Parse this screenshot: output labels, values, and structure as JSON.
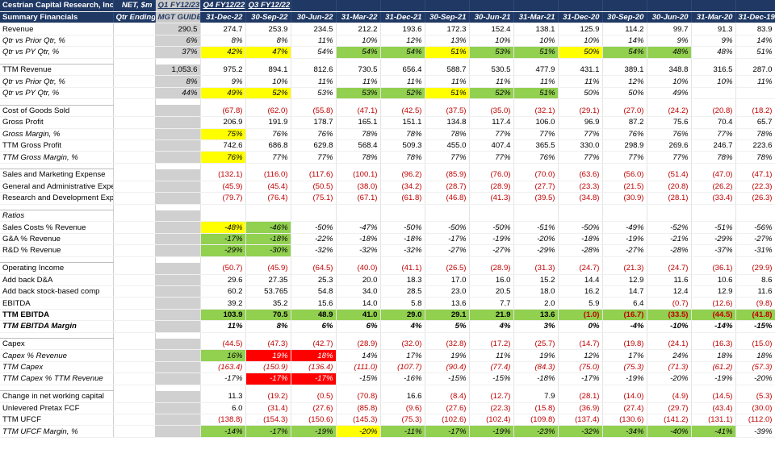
{
  "header": {
    "row1": [
      "Cestrian Capital Research, Inc",
      "NET, $m",
      "Q1 FY12/23",
      "Q4 FY12/22",
      "Q3 FY12/22",
      "",
      "",
      "",
      "",
      "",
      "",
      "",
      "",
      "",
      "",
      ""
    ],
    "row2": [
      "Summary Financials",
      "Qtr Ending",
      "MGT GUIDE",
      "31-Dec-22",
      "30-Sep-22",
      "30-Jun-22",
      "31-Mar-22",
      "31-Dec-21",
      "30-Sep-21",
      "30-Jun-21",
      "31-Mar-21",
      "31-Dec-20",
      "30-Sep-20",
      "30-Jun-20",
      "31-Mar-20",
      "31-Dec-19"
    ]
  },
  "rows": [
    {
      "label": "Revenue",
      "values": [
        "290.5",
        "274.7",
        "253.9",
        "234.5",
        "212.2",
        "193.6",
        "172.3",
        "152.4",
        "138.1",
        "125.9",
        "114.2",
        "99.7",
        "91.3",
        "83.9"
      ]
    },
    {
      "label": "Qtr vs Prior Qtr, %",
      "style": "it",
      "values": [
        "6%",
        "8%",
        "8%",
        "11%",
        "10%",
        "12%",
        "13%",
        "10%",
        "10%",
        "10%",
        "14%",
        "9%",
        "9%",
        "14%"
      ]
    },
    {
      "label": "Qtr vs PY Qtr, %",
      "style": "it",
      "values": [
        "37%",
        "42%",
        "47%",
        "54%",
        "54%",
        "54%",
        "51%",
        "53%",
        "51%",
        "50%",
        "54%",
        "48%",
        "48%",
        "51%"
      ]
    },
    {
      "blank": true
    },
    {
      "label": "TTM Revenue",
      "values": [
        "1,053.6",
        "975.2",
        "894.1",
        "812.6",
        "730.5",
        "656.4",
        "588.7",
        "530.5",
        "477.9",
        "431.1",
        "389.1",
        "348.8",
        "316.5",
        "287.0"
      ]
    },
    {
      "label": "Qtr vs Prior Qtr, %",
      "style": "it",
      "values": [
        "8%",
        "9%",
        "10%",
        "11%",
        "11%",
        "11%",
        "11%",
        "11%",
        "11%",
        "11%",
        "12%",
        "10%",
        "10%",
        "11%"
      ]
    },
    {
      "label": "Qtr vs PY Qtr, %",
      "style": "it",
      "values": [
        "44%",
        "49%",
        "52%",
        "53%",
        "53%",
        "52%",
        "51%",
        "52%",
        "51%",
        "50%",
        "50%",
        "49%",
        "",
        ""
      ]
    },
    {
      "blank": true
    },
    {
      "label": "Cost of Goods Sold",
      "values": [
        "",
        "(67.8)",
        "(62.0)",
        "(55.8)",
        "(47.1)",
        "(42.5)",
        "(37.5)",
        "(35.0)",
        "(32.1)",
        "(29.1)",
        "(27.0)",
        "(24.2)",
        "(20.8)",
        "(18.2)"
      ]
    },
    {
      "label": "Gross Profit",
      "values": [
        "",
        "206.9",
        "191.9",
        "178.7",
        "165.1",
        "151.1",
        "134.8",
        "117.4",
        "106.0",
        "96.9",
        "87.2",
        "75.6",
        "70.4",
        "65.7"
      ]
    },
    {
      "label": "Gross Margin, %",
      "style": "it",
      "values": [
        "",
        "75%",
        "76%",
        "76%",
        "78%",
        "78%",
        "78%",
        "77%",
        "77%",
        "77%",
        "76%",
        "76%",
        "77%",
        "78%"
      ]
    },
    {
      "label": "TTM Gross Profit",
      "values": [
        "",
        "742.6",
        "686.8",
        "629.8",
        "568.4",
        "509.3",
        "455.0",
        "407.4",
        "365.5",
        "330.0",
        "298.9",
        "269.6",
        "246.7",
        "223.6"
      ]
    },
    {
      "label": "TTM Gross Margin, %",
      "style": "it",
      "values": [
        "",
        "76%",
        "77%",
        "77%",
        "78%",
        "78%",
        "77%",
        "77%",
        "76%",
        "77%",
        "77%",
        "77%",
        "78%",
        "78%"
      ]
    },
    {
      "blank": true
    },
    {
      "label": "Sales and Marketing Expense",
      "values": [
        "",
        "(132.1)",
        "(116.0)",
        "(117.6)",
        "(100.1)",
        "(96.2)",
        "(85.9)",
        "(76.0)",
        "(70.0)",
        "(63.6)",
        "(56.0)",
        "(51.4)",
        "(47.0)",
        "(47.1)"
      ]
    },
    {
      "label": "General and Administrative Expense",
      "values": [
        "",
        "(45.9)",
        "(45.4)",
        "(50.5)",
        "(38.0)",
        "(34.2)",
        "(28.7)",
        "(28.9)",
        "(27.7)",
        "(23.3)",
        "(21.5)",
        "(20.8)",
        "(26.2)",
        "(22.3)"
      ]
    },
    {
      "label": "Research and Development Expense",
      "values": [
        "",
        "(79.7)",
        "(76.4)",
        "(75.1)",
        "(67.1)",
        "(61.8)",
        "(46.8)",
        "(41.3)",
        "(39.5)",
        "(34.8)",
        "(30.9)",
        "(28.1)",
        "(33.4)",
        "(26.3)"
      ]
    },
    {
      "blank": true
    },
    {
      "label": "Ratios",
      "style": "it",
      "values": [
        "",
        "",
        "",
        "",
        "",
        "",
        "",
        "",
        "",
        "",
        "",
        "",
        "",
        ""
      ]
    },
    {
      "label": "Sales Costs % Revenue",
      "values": [
        "",
        "-48%",
        "-46%",
        "-50%",
        "-47%",
        "-50%",
        "-50%",
        "-50%",
        "-51%",
        "-50%",
        "-49%",
        "-52%",
        "-51%",
        "-56%"
      ],
      "cellstyle": "it"
    },
    {
      "label": "G&A % Revenue",
      "values": [
        "",
        "-17%",
        "-18%",
        "-22%",
        "-18%",
        "-18%",
        "-17%",
        "-19%",
        "-20%",
        "-18%",
        "-19%",
        "-21%",
        "-29%",
        "-27%"
      ],
      "cellstyle": "it"
    },
    {
      "label": "R&D % Revenue",
      "values": [
        "",
        "-29%",
        "-30%",
        "-32%",
        "-32%",
        "-32%",
        "-27%",
        "-27%",
        "-29%",
        "-28%",
        "-27%",
        "-28%",
        "-37%",
        "-31%"
      ],
      "cellstyle": "it"
    },
    {
      "blank": true
    },
    {
      "label": "Operating Income",
      "values": [
        "",
        "(50.7)",
        "(45.9)",
        "(64.5)",
        "(40.0)",
        "(41.1)",
        "(26.5)",
        "(28.9)",
        "(31.3)",
        "(24.7)",
        "(21.3)",
        "(24.7)",
        "(36.1)",
        "(29.9)"
      ]
    },
    {
      "label": "Add back D&A",
      "values": [
        "",
        "29.6",
        "27.35",
        "25.3",
        "20.0",
        "18.3",
        "17.0",
        "16.0",
        "15.2",
        "14.4",
        "12.9",
        "11.6",
        "10.6",
        "8.6"
      ]
    },
    {
      "label": "Add back stock-based comp",
      "values": [
        "",
        "60.2",
        "53.765",
        "54.8",
        "34.0",
        "28.5",
        "23.0",
        "20.5",
        "18.0",
        "16.2",
        "14.7",
        "12.4",
        "12.9",
        "11.6"
      ]
    },
    {
      "label": "EBITDA",
      "values": [
        "",
        "39.2",
        "35.2",
        "15.6",
        "14.0",
        "5.8",
        "13.6",
        "7.7",
        "2.0",
        "5.9",
        "6.4",
        "(0.7)",
        "(12.6)",
        "(9.8)"
      ]
    },
    {
      "label": "TTM EBITDA",
      "style": "bd",
      "values": [
        "",
        "103.9",
        "70.5",
        "48.9",
        "41.0",
        "29.0",
        "29.1",
        "21.9",
        "13.6",
        "(1.0)",
        "(16.7)",
        "(33.5)",
        "(44.5)",
        "(41.8)"
      ],
      "cellstyle": "bd",
      "topline": true
    },
    {
      "label": "TTM EBITDA Margin",
      "style": "bd it",
      "values": [
        "",
        "11%",
        "8%",
        "6%",
        "6%",
        "4%",
        "5%",
        "4%",
        "3%",
        "0%",
        "-4%",
        "-10%",
        "-14%",
        "-15%"
      ],
      "cellstyle": "bd it"
    },
    {
      "blank": true
    },
    {
      "label": "Capex",
      "values": [
        "",
        "(44.5)",
        "(47.3)",
        "(42.7)",
        "(28.9)",
        "(32.0)",
        "(32.8)",
        "(17.2)",
        "(25.7)",
        "(14.7)",
        "(19.8)",
        "(24.1)",
        "(16.3)",
        "(15.0)"
      ]
    },
    {
      "label": "Capex % Revenue",
      "style": "it",
      "values": [
        "",
        "16%",
        "19%",
        "18%",
        "14%",
        "17%",
        "19%",
        "11%",
        "19%",
        "12%",
        "17%",
        "24%",
        "18%",
        "18%"
      ],
      "cellstyle": "it"
    },
    {
      "label": "TTM Capex",
      "style": "it",
      "values": [
        "",
        "(163.4)",
        "(150.9)",
        "(136.4)",
        "(111.0)",
        "(107.7)",
        "(90.4)",
        "(77.4)",
        "(84.3)",
        "(75.0)",
        "(75.3)",
        "(71.3)",
        "(61.2)",
        "(57.3)"
      ],
      "cellstyle": "it"
    },
    {
      "label": "TTM Capex % TTM Revenue",
      "style": "it",
      "values": [
        "",
        "-17%",
        "-17%",
        "-17%",
        "-15%",
        "-16%",
        "-15%",
        "-15%",
        "-18%",
        "-17%",
        "-19%",
        "-20%",
        "-19%",
        "-20%"
      ],
      "cellstyle": "it"
    },
    {
      "blank": true
    },
    {
      "label": "Change in net working capital",
      "values": [
        "",
        "11.3",
        "(19.2)",
        "(0.5)",
        "(70.8)",
        "16.6",
        "(8.4)",
        "(12.7)",
        "7.9",
        "(28.1)",
        "(14.0)",
        "(4.9)",
        "(14.5)",
        "(5.3)"
      ]
    },
    {
      "label": "Unlevered Pretax FCF",
      "values": [
        "",
        "6.0",
        "(31.4)",
        "(27.6)",
        "(85.8)",
        "(9.6)",
        "(27.6)",
        "(22.3)",
        "(15.8)",
        "(36.9)",
        "(27.4)",
        "(29.7)",
        "(43.4)",
        "(30.0)"
      ]
    },
    {
      "label": "TTM UFCF",
      "values": [
        "",
        "(138.8)",
        "(154.3)",
        "(150.6)",
        "(145.3)",
        "(75.3)",
        "(102.6)",
        "(102.4)",
        "(109.8)",
        "(137.4)",
        "(130.6)",
        "(141.2)",
        "(131.1)",
        "(112.0)"
      ]
    },
    {
      "label": "TTM UFCF Margin, %",
      "style": "it",
      "values": [
        "",
        "-14%",
        "-17%",
        "-19%",
        "-20%",
        "-11%",
        "-17%",
        "-19%",
        "-23%",
        "-32%",
        "-34%",
        "-40%",
        "-41%",
        "-39%"
      ],
      "cellstyle": "it"
    }
  ],
  "highlight_colors": {
    "yellow": "#ffff00",
    "green": "#92d050",
    "red": "#ff0000",
    "header": "#1f3864",
    "negative": "#c00000"
  },
  "highlights": {
    "2": {
      "1": "y",
      "2": "y",
      "4": "g",
      "5": "g",
      "6": "y",
      "7": "g",
      "8": "g",
      "9": "y",
      "10": "g",
      "11": "g"
    },
    "6": {
      "1": "y",
      "2": "y",
      "4": "g",
      "5": "g",
      "6": "y",
      "7": "g",
      "8": "g"
    },
    "10": {
      "1": "y"
    },
    "12": {
      "1": "y"
    },
    "19": {
      "1": "y",
      "2": "g"
    },
    "20": {
      "1": "g",
      "2": "g"
    },
    "21": {
      "1": "g",
      "2": "g"
    },
    "27": {
      "1": "g",
      "2": "g",
      "3": "g",
      "4": "g",
      "5": "g",
      "6": "g",
      "7": "g",
      "8": "g",
      "9": "g",
      "10": "g",
      "11": "g",
      "12": "g",
      "13": "g"
    },
    "31": {
      "1": "g",
      "2": "r",
      "3": "r"
    },
    "33": {
      "2": "r",
      "3": "r"
    },
    "38": {
      "1": "g",
      "2": "g",
      "3": "g",
      "4": "y",
      "5": "g",
      "6": "g",
      "7": "g",
      "8": "g",
      "9": "g",
      "10": "g",
      "11": "g",
      "12": "g"
    }
  }
}
